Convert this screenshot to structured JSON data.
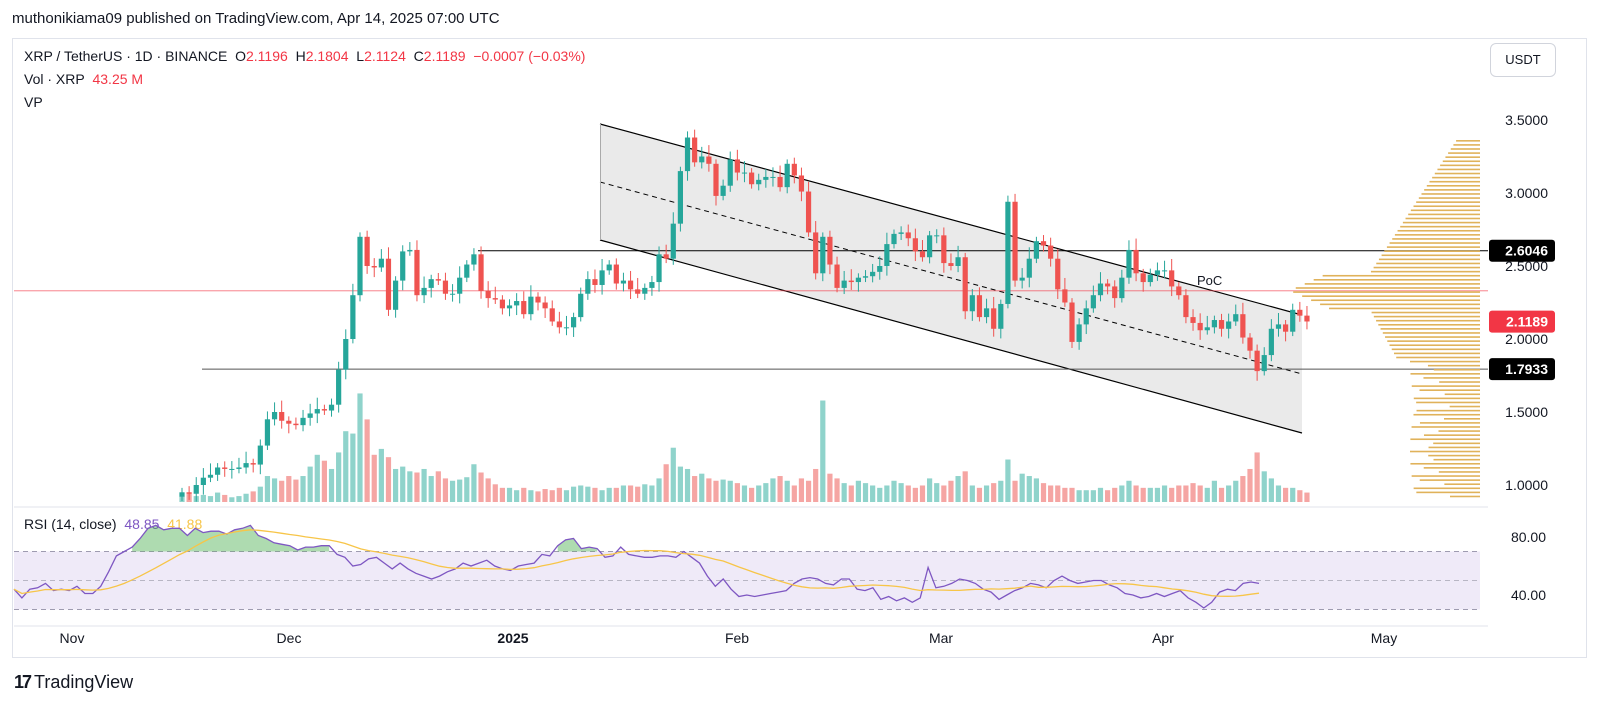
{
  "header": {
    "publisher_line": "muthonikiama09 published on TradingView.com, Apr 14, 2025 07:00 UTC"
  },
  "legend": {
    "symbol": "XRP / TetherUS · 1D · BINANCE",
    "open_label": "O",
    "open": "2.1196",
    "high_label": "H",
    "high": "2.1804",
    "low_label": "L",
    "low": "2.1124",
    "close_label": "C",
    "close": "2.1189",
    "change": "−0.0007 (−0.03%)",
    "vol_label": "Vol · XRP",
    "vol_value": "43.25 M",
    "vp_label": "VP"
  },
  "currency_button": "USDT",
  "rsi_legend": {
    "label": "RSI (14, close)",
    "value": "48.85",
    "ma_value": "41.88"
  },
  "brand": {
    "name": "TradingView"
  },
  "colors": {
    "up": "#26a69a",
    "down": "#ef5350",
    "vol_up": "#8fd3cb",
    "vol_down": "#f5a5a3",
    "vp": "#e0b25a",
    "rsi": "#7e57c2",
    "rsi_ma": "#f7c548",
    "channel_fill": "#e6e6e6"
  },
  "chart_data": [
    {
      "type": "candlestick",
      "ylim": [
        0.9,
        3.6
      ],
      "y_axis_ticks": [
        "3.5000",
        "3.0000",
        "2.5000",
        "2.0000",
        "1.5000",
        "1.0000"
      ],
      "x_axis_ticks": [
        "Nov",
        "Dec",
        "2025",
        "Feb",
        "Mar",
        "Apr",
        "May"
      ],
      "price_tags": [
        "2.6046",
        "2.1189",
        "1.7933"
      ],
      "annotations": [
        "PoC"
      ],
      "grid": false,
      "close": [
        0.95,
        0.94,
        1.0,
        1.05,
        1.07,
        1.12,
        1.11,
        1.11,
        1.12,
        1.15,
        1.14,
        1.27,
        1.45,
        1.5,
        1.44,
        1.42,
        1.41,
        1.46,
        1.49,
        1.52,
        1.51,
        1.55,
        1.79,
        2.0,
        2.3,
        2.7,
        2.5,
        2.49,
        2.55,
        2.2,
        2.4,
        2.6,
        2.61,
        2.3,
        2.35,
        2.41,
        2.4,
        2.31,
        2.31,
        2.42,
        2.51,
        2.58,
        2.33,
        2.28,
        2.27,
        2.21,
        2.23,
        2.26,
        2.17,
        2.29,
        2.25,
        2.21,
        2.12,
        2.08,
        2.08,
        2.15,
        2.31,
        2.41,
        2.37,
        2.47,
        2.51,
        2.38,
        2.4,
        2.34,
        2.31,
        2.35,
        2.39,
        2.58,
        2.55,
        2.79,
        3.15,
        3.38,
        3.21,
        3.25,
        3.2,
        2.98,
        3.05,
        3.23,
        3.14,
        3.14,
        3.06,
        3.09,
        3.11,
        3.11,
        3.04,
        3.2,
        3.12,
        3.01,
        2.73,
        2.45,
        2.7,
        2.51,
        2.35,
        2.4,
        2.39,
        2.42,
        2.43,
        2.46,
        2.5,
        2.65,
        2.72,
        2.73,
        2.69,
        2.6,
        2.56,
        2.71,
        2.71,
        2.52,
        2.5,
        2.56,
        2.19,
        2.3,
        2.15,
        2.21,
        2.07,
        2.24,
        2.94,
        2.4,
        2.42,
        2.55,
        2.67,
        2.64,
        2.55,
        2.34,
        2.25,
        1.98,
        2.1,
        2.21,
        2.3,
        2.38,
        2.36,
        2.28,
        2.42,
        2.61,
        2.45,
        2.39,
        2.44,
        2.47,
        2.47,
        2.36,
        2.3,
        2.15,
        2.11,
        2.06,
        2.08,
        2.13,
        2.07,
        2.12,
        2.17,
        2.01,
        1.92,
        1.78,
        1.89,
        2.07,
        2.1,
        2.05,
        2.2,
        2.16,
        2.12
      ],
      "volume": [
        0.05,
        0.07,
        0.05,
        0.06,
        0.05,
        0.08,
        0.06,
        0.04,
        0.05,
        0.07,
        0.09,
        0.13,
        0.22,
        0.2,
        0.18,
        0.22,
        0.19,
        0.22,
        0.3,
        0.4,
        0.35,
        0.28,
        0.42,
        0.6,
        0.58,
        0.92,
        0.7,
        0.4,
        0.45,
        0.38,
        0.28,
        0.3,
        0.26,
        0.25,
        0.28,
        0.22,
        0.26,
        0.2,
        0.18,
        0.19,
        0.21,
        0.32,
        0.25,
        0.2,
        0.15,
        0.12,
        0.12,
        0.1,
        0.12,
        0.1,
        0.09,
        0.11,
        0.1,
        0.12,
        0.1,
        0.13,
        0.14,
        0.13,
        0.12,
        0.1,
        0.12,
        0.12,
        0.14,
        0.14,
        0.13,
        0.15,
        0.14,
        0.2,
        0.32,
        0.46,
        0.3,
        0.28,
        0.22,
        0.24,
        0.2,
        0.18,
        0.19,
        0.18,
        0.16,
        0.14,
        0.12,
        0.14,
        0.16,
        0.2,
        0.22,
        0.18,
        0.14,
        0.2,
        0.18,
        0.28,
        0.86,
        0.24,
        0.2,
        0.16,
        0.14,
        0.18,
        0.16,
        0.14,
        0.12,
        0.14,
        0.18,
        0.16,
        0.14,
        0.12,
        0.14,
        0.2,
        0.16,
        0.14,
        0.18,
        0.22,
        0.26,
        0.14,
        0.12,
        0.14,
        0.16,
        0.18,
        0.36,
        0.18,
        0.24,
        0.22,
        0.2,
        0.16,
        0.14,
        0.14,
        0.12,
        0.12,
        0.1,
        0.1,
        0.1,
        0.12,
        0.1,
        0.12,
        0.14,
        0.18,
        0.14,
        0.12,
        0.12,
        0.12,
        0.14,
        0.12,
        0.14,
        0.14,
        0.16,
        0.14,
        0.12,
        0.18,
        0.12,
        0.14,
        0.18,
        0.22,
        0.28,
        0.42,
        0.26,
        0.2,
        0.14,
        0.12,
        0.12,
        0.1,
        0.08
      ]
    },
    {
      "type": "line",
      "title": "RSI (14, close)",
      "ylim": [
        25,
        95
      ],
      "y_axis_ticks": [
        "80.00",
        "40.00"
      ],
      "series": [
        {
          "name": "RSI",
          "values": [
            44,
            38,
            44,
            45,
            48,
            43,
            44,
            43,
            46,
            41,
            41,
            46,
            56,
            67,
            70,
            73,
            79,
            86,
            88,
            85,
            86,
            86,
            81,
            86,
            83,
            84,
            84,
            82,
            85,
            86,
            88,
            81,
            79,
            76,
            75,
            74,
            71,
            73,
            73,
            74,
            74,
            68,
            66,
            60,
            61,
            65,
            66,
            62,
            58,
            62,
            58,
            55,
            53,
            51,
            53,
            56,
            58,
            62,
            60,
            62,
            64,
            60,
            58,
            57,
            60,
            61,
            62,
            68,
            67,
            74,
            78,
            79,
            72,
            73,
            72,
            66,
            67,
            73,
            68,
            67,
            66,
            66,
            67,
            67,
            66,
            70,
            66,
            62,
            53,
            46,
            51,
            44,
            39,
            40,
            39,
            40,
            41,
            42,
            43,
            48,
            51,
            52,
            51,
            48,
            47,
            51,
            51,
            44,
            43,
            45,
            37,
            39,
            36,
            38,
            35,
            38,
            59,
            45,
            46,
            48,
            51,
            50,
            48,
            44,
            42,
            37,
            40,
            43,
            45,
            48,
            47,
            45,
            50,
            53,
            50,
            48,
            49,
            50,
            50,
            47,
            45,
            41,
            40,
            38,
            39,
            41,
            39,
            41,
            43,
            38,
            35,
            31,
            35,
            42,
            44,
            43,
            48,
            49,
            48
          ]
        },
        {
          "name": "MA",
          "values": []
        }
      ]
    }
  ]
}
